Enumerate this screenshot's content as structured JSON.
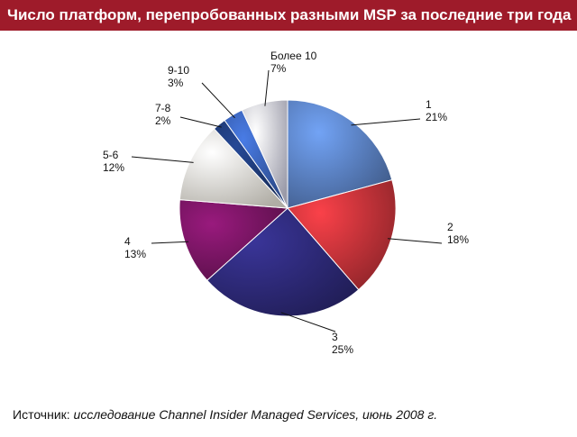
{
  "title": "Число платформ, перепробованных разными MSP за последние три года",
  "source": {
    "prefix": "Источник:",
    "text": "исследование Channel Insider Managed Services, июнь 2008 г."
  },
  "colors": {
    "title_bg": "#9e1b2a",
    "s1": "#5b82c4",
    "s2": "#c8343a",
    "s3": "#2e2a7a",
    "s4": "#7a1564",
    "s5_6": "#fbf7ec",
    "s7_8": "#1e3a78",
    "s9_10": "#3a63b8",
    "s_more10": "#dcdcf0"
  },
  "chart_data": {
    "type": "pie",
    "start": "12 o'clock, clockwise",
    "slices": [
      {
        "label": "1",
        "value": 21,
        "value_label": "21%"
      },
      {
        "label": "2",
        "value": 18,
        "value_label": "18%"
      },
      {
        "label": "3",
        "value": 25,
        "value_label": "25%"
      },
      {
        "label": "4",
        "value": 13,
        "value_label": "13%"
      },
      {
        "label": "5-6",
        "value": 12,
        "value_label": "12%"
      },
      {
        "label": "7-8",
        "value": 2,
        "value_label": "2%"
      },
      {
        "label": "9-10",
        "value": 3,
        "value_label": "3%"
      },
      {
        "label": "Более 10",
        "value": 7,
        "value_label": "7%"
      }
    ]
  }
}
